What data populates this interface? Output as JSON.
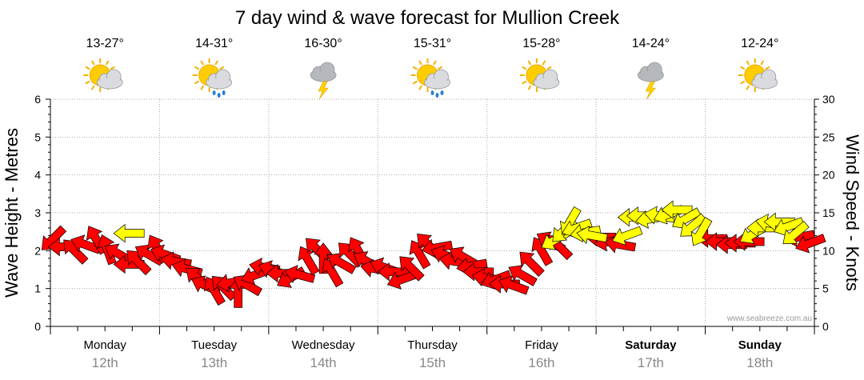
{
  "title": "7 day wind & wave forecast for Mullion Creek",
  "watermark": "www.seabreeze.com.au",
  "colors": {
    "light_wind": "#ffff00",
    "strong_wind": "#ff0000",
    "grid": "#aaaaaa",
    "text": "#000000"
  },
  "days": [
    {
      "name": "Monday",
      "date": "12th",
      "temp": "13-27°",
      "icon": "sun-cloud-icon",
      "bold": false
    },
    {
      "name": "Tuesday",
      "date": "13th",
      "temp": "14-31°",
      "icon": "sun-cloud-rain-icon",
      "bold": false
    },
    {
      "name": "Wednesday",
      "date": "14th",
      "temp": "16-30°",
      "icon": "storm-cloud-icon",
      "bold": false
    },
    {
      "name": "Thursday",
      "date": "15th",
      "temp": "15-31°",
      "icon": "sun-cloud-rain-icon",
      "bold": false
    },
    {
      "name": "Friday",
      "date": "16th",
      "temp": "15-28°",
      "icon": "sun-cloud-icon",
      "bold": false
    },
    {
      "name": "Saturday",
      "date": "17th",
      "temp": "14-24°",
      "icon": "storm-cloud-icon",
      "bold": true
    },
    {
      "name": "Sunday",
      "date": "18th",
      "temp": "12-24°",
      "icon": "sun-cloud-icon",
      "bold": true
    }
  ],
  "chart_data": {
    "type": "scatter",
    "ylabel": "Wave Height - Metres",
    "y2label": "Wind Speed - Knots",
    "ylim": [
      0,
      6
    ],
    "y2lim": [
      0,
      30
    ],
    "yticks": [
      "0",
      "1",
      "2",
      "3",
      "4",
      "5",
      "6"
    ],
    "y2ticks": [
      "0",
      "5",
      "10",
      "15",
      "20",
      "25",
      "30"
    ],
    "categories": [
      "Monday",
      "Tuesday",
      "Wednesday",
      "Thursday",
      "Friday",
      "Saturday",
      "Sunday"
    ],
    "grid": true,
    "series": [
      {
        "color": "#ff0000",
        "points": [
          {
            "t": 0.02,
            "knots": 11.5,
            "dir": 315
          },
          {
            "t": 0.12,
            "knots": 10.5,
            "dir": 0
          },
          {
            "t": 0.22,
            "knots": 10.0,
            "dir": 45
          },
          {
            "t": 0.32,
            "knots": 10.8,
            "dir": 20
          },
          {
            "t": 0.42,
            "knots": 11.5,
            "dir": 60
          },
          {
            "t": 0.52,
            "knots": 10.2,
            "dir": 70
          },
          {
            "t": 0.62,
            "knots": 9.6,
            "dir": 30
          },
          {
            "t": 0.72,
            "knots": 8.2,
            "dir": 0
          },
          {
            "t": 0.8,
            "knots": 8.6,
            "dir": 45
          },
          {
            "t": 0.9,
            "knots": 9.5,
            "dir": 30
          },
          {
            "t": 0.98,
            "knots": 10.3,
            "dir": 60
          },
          {
            "t": 1.05,
            "knots": 9.5,
            "dir": 20
          },
          {
            "t": 1.15,
            "knots": 8.6,
            "dir": 10
          },
          {
            "t": 1.25,
            "knots": 7.6,
            "dir": 15
          },
          {
            "t": 1.35,
            "knots": 6.4,
            "dir": 40
          },
          {
            "t": 1.42,
            "knots": 5.4,
            "dir": 25
          },
          {
            "t": 1.5,
            "knots": 4.8,
            "dir": 60
          },
          {
            "t": 1.58,
            "knots": 5.2,
            "dir": 45
          },
          {
            "t": 1.66,
            "knots": 5.8,
            "dir": -10
          },
          {
            "t": 1.72,
            "knots": 4.5,
            "dir": 90
          },
          {
            "t": 1.8,
            "knots": 5.5,
            "dir": 30
          },
          {
            "t": 1.88,
            "knots": 6.8,
            "dir": -20
          },
          {
            "t": 1.96,
            "knots": 7.8,
            "dir": 10
          },
          {
            "t": 2.04,
            "knots": 7.4,
            "dir": 20
          },
          {
            "t": 2.12,
            "knots": 7.0,
            "dir": 0
          },
          {
            "t": 2.2,
            "knots": 6.4,
            "dir": -30
          },
          {
            "t": 2.28,
            "knots": 6.8,
            "dir": 15
          },
          {
            "t": 2.36,
            "knots": 8.8,
            "dir": 60
          },
          {
            "t": 2.44,
            "knots": 10.2,
            "dir": 45
          },
          {
            "t": 2.5,
            "knots": 9.0,
            "dir": 90
          },
          {
            "t": 2.58,
            "knots": 7.2,
            "dir": 60
          },
          {
            "t": 2.66,
            "knots": 8.4,
            "dir": 30
          },
          {
            "t": 2.74,
            "knots": 9.6,
            "dir": 45
          },
          {
            "t": 2.82,
            "knots": 10.0,
            "dir": 60
          },
          {
            "t": 2.9,
            "knots": 8.6,
            "dir": 30
          },
          {
            "t": 2.98,
            "knots": 7.6,
            "dir": 10
          },
          {
            "t": 3.06,
            "knots": 7.8,
            "dir": 20
          },
          {
            "t": 3.14,
            "knots": 7.2,
            "dir": 0
          },
          {
            "t": 3.22,
            "knots": 6.2,
            "dir": -20
          },
          {
            "t": 3.3,
            "knots": 7.8,
            "dir": 45
          },
          {
            "t": 3.38,
            "knots": 9.6,
            "dir": 60
          },
          {
            "t": 3.46,
            "knots": 10.8,
            "dir": 45
          },
          {
            "t": 3.54,
            "knots": 10.4,
            "dir": -10
          },
          {
            "t": 3.62,
            "knots": 9.4,
            "dir": 20
          },
          {
            "t": 3.7,
            "knots": 8.6,
            "dir": 10
          },
          {
            "t": 3.78,
            "knots": 9.2,
            "dir": 30
          },
          {
            "t": 3.86,
            "knots": 8.0,
            "dir": -10
          },
          {
            "t": 3.92,
            "knots": 7.2,
            "dir": 0
          },
          {
            "t": 4.0,
            "knots": 6.4,
            "dir": 10
          },
          {
            "t": 4.08,
            "knots": 6.2,
            "dir": -20
          },
          {
            "t": 4.16,
            "knots": 5.6,
            "dir": 0
          },
          {
            "t": 4.24,
            "knots": 5.4,
            "dir": 20
          },
          {
            "t": 4.32,
            "knots": 6.8,
            "dir": 30
          },
          {
            "t": 4.4,
            "knots": 8.4,
            "dir": 45
          },
          {
            "t": 4.5,
            "knots": 10.0,
            "dir": 60
          },
          {
            "t": 4.58,
            "knots": 11.2,
            "dir": 30
          },
          {
            "t": 4.66,
            "knots": 10.6,
            "dir": 45
          },
          {
            "t": 5.04,
            "knots": 11.8,
            "dir": 0
          },
          {
            "t": 5.12,
            "knots": 11.2,
            "dir": -10
          },
          {
            "t": 5.22,
            "knots": 10.8,
            "dir": 10
          },
          {
            "t": 6.06,
            "knots": 11.6,
            "dir": 0
          },
          {
            "t": 6.14,
            "knots": 11.2,
            "dir": 0
          },
          {
            "t": 6.24,
            "knots": 10.8,
            "dir": 0
          },
          {
            "t": 6.32,
            "knots": 11.0,
            "dir": 0
          },
          {
            "t": 6.4,
            "knots": 11.2,
            "dir": 0
          },
          {
            "t": 6.86,
            "knots": 11.8,
            "dir": -10
          },
          {
            "t": 6.96,
            "knots": 11.0,
            "dir": -20
          }
        ]
      },
      {
        "color": "#ffff00",
        "points": [
          {
            "t": 0.72,
            "knots": 12.3,
            "dir": 0
          },
          {
            "t": 4.62,
            "knots": 11.4,
            "dir": -30
          },
          {
            "t": 4.7,
            "knots": 12.6,
            "dir": -45
          },
          {
            "t": 4.76,
            "knots": 13.8,
            "dir": -60
          },
          {
            "t": 4.82,
            "knots": 13.0,
            "dir": -20
          },
          {
            "t": 4.9,
            "knots": 12.4,
            "dir": -10
          },
          {
            "t": 4.96,
            "knots": 12.0,
            "dir": 10
          },
          {
            "t": 5.28,
            "knots": 12.0,
            "dir": -20
          },
          {
            "t": 5.34,
            "knots": 14.4,
            "dir": 0
          },
          {
            "t": 5.42,
            "knots": 14.6,
            "dir": 0
          },
          {
            "t": 5.5,
            "knots": 14.2,
            "dir": -10
          },
          {
            "t": 5.58,
            "knots": 14.6,
            "dir": 10
          },
          {
            "t": 5.66,
            "knots": 14.8,
            "dir": -20
          },
          {
            "t": 5.74,
            "knots": 15.4,
            "dir": 0
          },
          {
            "t": 5.82,
            "knots": 14.2,
            "dir": -30
          },
          {
            "t": 5.88,
            "knots": 13.2,
            "dir": -40
          },
          {
            "t": 5.96,
            "knots": 12.4,
            "dir": -60
          },
          {
            "t": 6.44,
            "knots": 12.2,
            "dir": -30
          },
          {
            "t": 6.52,
            "knots": 13.0,
            "dir": 0
          },
          {
            "t": 6.6,
            "knots": 13.6,
            "dir": 10
          },
          {
            "t": 6.68,
            "knots": 13.8,
            "dir": 0
          },
          {
            "t": 6.76,
            "knots": 13.2,
            "dir": -20
          },
          {
            "t": 6.82,
            "knots": 12.2,
            "dir": -40
          }
        ]
      }
    ]
  }
}
